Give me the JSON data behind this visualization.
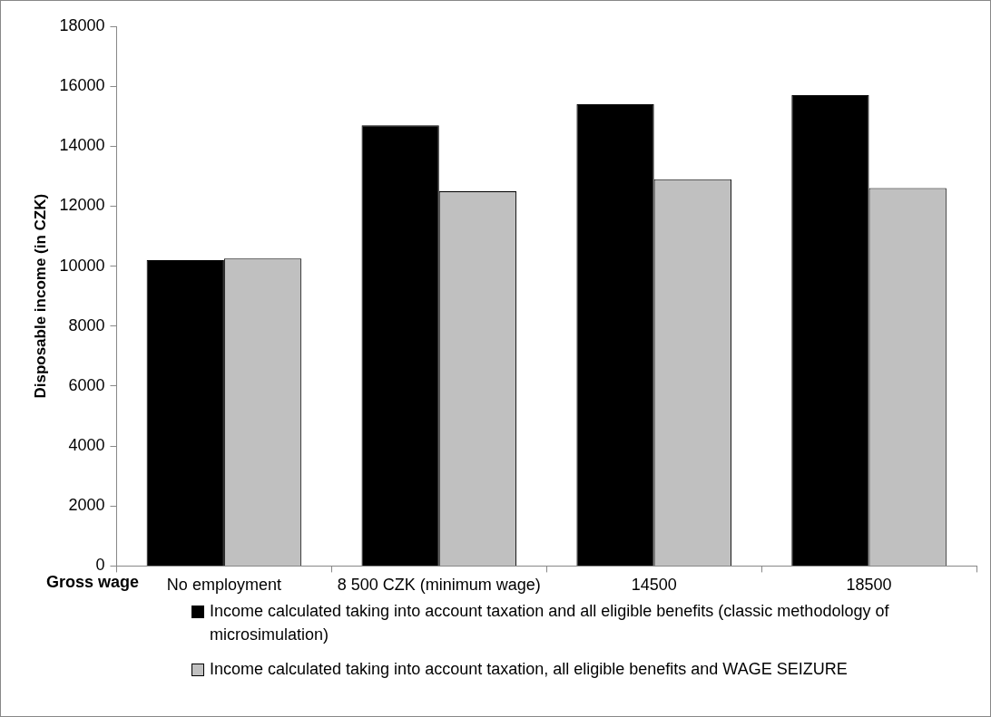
{
  "chart_data": {
    "type": "bar",
    "ylabel": "Disposable income (in CZK)",
    "xlabel": "Gross wage",
    "categories": [
      "No employment",
      "8 500 CZK (minimum wage)",
      "14500",
      "18500"
    ],
    "series": [
      {
        "name": "Income calculated taking into account taxation and all eligible benefits (classic methodology of microsimulation)",
        "color": "#000000",
        "values": [
          10200,
          14700,
          15400,
          15700
        ]
      },
      {
        "name": "Income calculated taking into account taxation, all eligible benefits and WAGE SEIZURE",
        "color": "#c0c0c0",
        "values": [
          10250,
          12500,
          12900,
          12600
        ]
      }
    ],
    "ylim": [
      0,
      18000
    ],
    "yticks": [
      0,
      2000,
      4000,
      6000,
      8000,
      10000,
      12000,
      14000,
      16000,
      18000
    ],
    "grid": false,
    "legend": "bottom"
  }
}
